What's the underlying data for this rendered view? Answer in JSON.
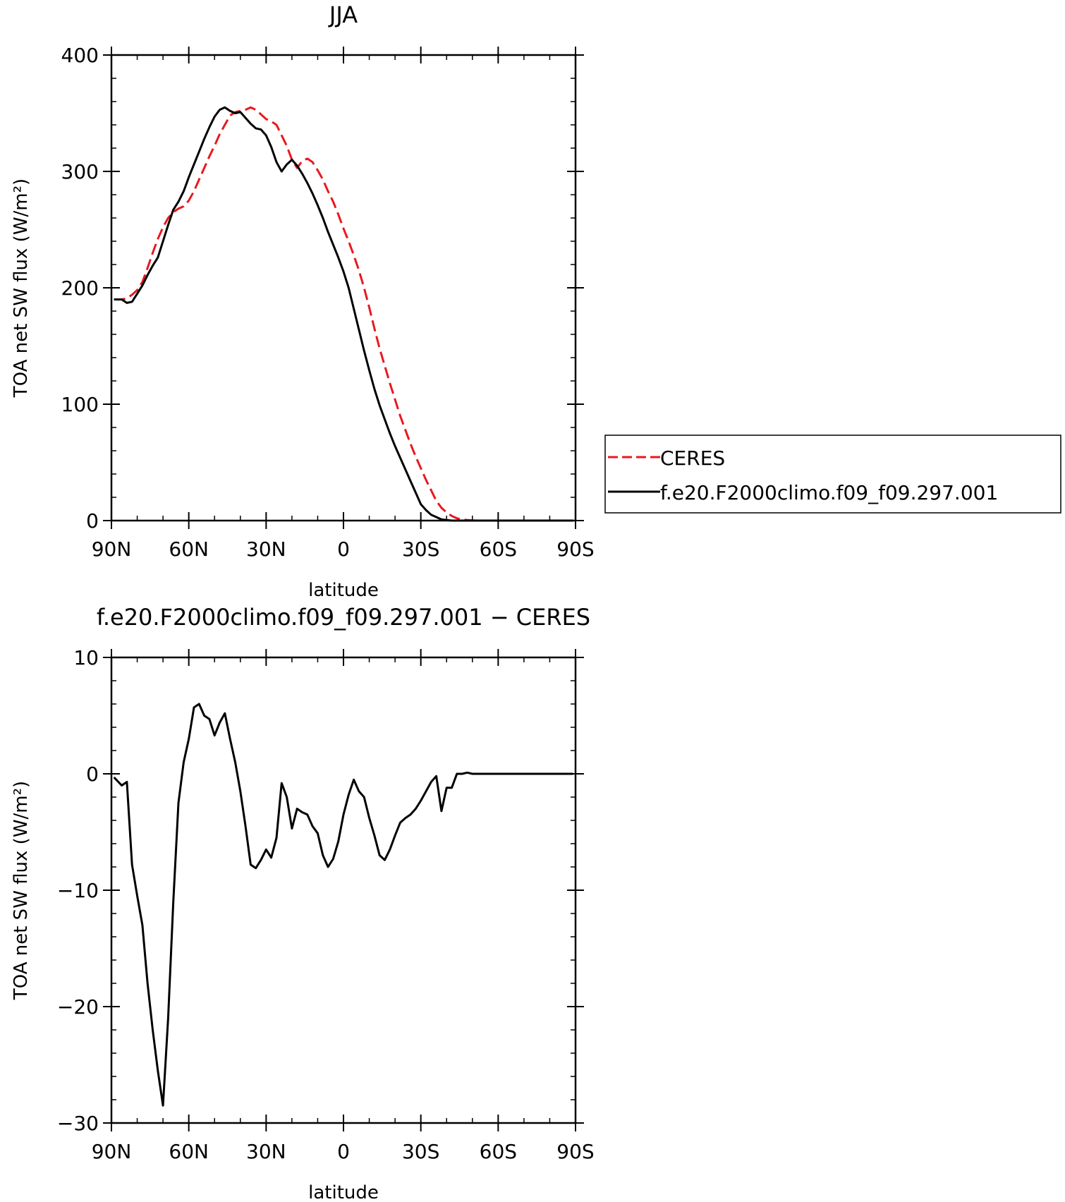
{
  "chart_data": [
    {
      "type": "line",
      "title": "JJA",
      "xlabel": "latitude",
      "ylabel": "TOA net SW flux (W/m²)",
      "xlim": [
        90,
        -90
      ],
      "ylim": [
        0,
        400
      ],
      "xticks": [
        90,
        60,
        30,
        0,
        -30,
        -60,
        -90
      ],
      "xtick_labels": [
        "90N",
        "60N",
        "30N",
        "0",
        "30S",
        "60S",
        "90S"
      ],
      "yticks": [
        0,
        100,
        200,
        300,
        400
      ],
      "ytick_labels": [
        "0",
        "100",
        "200",
        "300",
        "400"
      ],
      "legend": "right",
      "series": [
        {
          "name": "CERES",
          "color": "#e8191e",
          "dash": true,
          "x": [
            89,
            86,
            84,
            82,
            80,
            78,
            76,
            74,
            72,
            70,
            68,
            66,
            64,
            62,
            60,
            58,
            56,
            54,
            52,
            50,
            48,
            46,
            44,
            42,
            40,
            38,
            36,
            34,
            32,
            30,
            28,
            26,
            24,
            22,
            20,
            18,
            16,
            14,
            12,
            10,
            8,
            6,
            4,
            2,
            0,
            -2,
            -4,
            -6,
            -8,
            -10,
            -12,
            -14,
            -16,
            -18,
            -20,
            -22,
            -24,
            -26,
            -28,
            -30,
            -32,
            -34,
            -36,
            -38,
            -40,
            -42,
            -44,
            -46,
            -48,
            -50,
            -52,
            -54,
            -56,
            -58,
            -60,
            -62,
            -64,
            -66,
            -68,
            -70,
            -72,
            -74,
            -76,
            -78,
            -80,
            -82,
            -84,
            -86,
            -88,
            -89
          ],
          "y": [
            190,
            190,
            191,
            194,
            198,
            205,
            217,
            230,
            242,
            252,
            260,
            265,
            268,
            270,
            275,
            283,
            293,
            303,
            313,
            322,
            332,
            340,
            348,
            351,
            352,
            353,
            355,
            353,
            349,
            345,
            343,
            340,
            331,
            322,
            310,
            303,
            309,
            311,
            308,
            301,
            293,
            283,
            274,
            263,
            251,
            240,
            228,
            215,
            200,
            183,
            165,
            148,
            133,
            118,
            104,
            90,
            78,
            66,
            55,
            45,
            35,
            26,
            17,
            11,
            7,
            4,
            2,
            1,
            0.5,
            0.2,
            0,
            0,
            0,
            0,
            0,
            0,
            0,
            0,
            0,
            0,
            0,
            0,
            0,
            0,
            0,
            0,
            0,
            0,
            0,
            0
          ]
        },
        {
          "name": "f.e20.F2000climo.f09_f09.297.001",
          "color": "#000000",
          "dash": false,
          "x": [
            89,
            86,
            84,
            82,
            80,
            78,
            76,
            74,
            72,
            70,
            68,
            66,
            64,
            62,
            60,
            58,
            56,
            54,
            52,
            50,
            48,
            46,
            44,
            42,
            40,
            38,
            36,
            34,
            32,
            30,
            28,
            26,
            24,
            22,
            20,
            18,
            16,
            14,
            12,
            10,
            8,
            6,
            4,
            2,
            0,
            -2,
            -4,
            -6,
            -8,
            -10,
            -12,
            -14,
            -16,
            -18,
            -20,
            -22,
            -24,
            -26,
            -28,
            -30,
            -32,
            -34,
            -36,
            -38,
            -40,
            -42,
            -44,
            -46,
            -48,
            -50,
            -52,
            -54,
            -56,
            -58,
            -60,
            -62,
            -64,
            -66,
            -68,
            -70,
            -72,
            -74,
            -76,
            -78,
            -80,
            -82,
            -84,
            -86,
            -88,
            -89
          ],
          "y": [
            190,
            190,
            187,
            188,
            195,
            202,
            211,
            219,
            226,
            240,
            254,
            267,
            274,
            283,
            295,
            306,
            317,
            328,
            338,
            347,
            353,
            355,
            352,
            350,
            351,
            346,
            341,
            337,
            336,
            331,
            321,
            308,
            300,
            306,
            310,
            305,
            298,
            290,
            281,
            271,
            260,
            248,
            237,
            226,
            214,
            200,
            182,
            164,
            146,
            129,
            113,
            99,
            87,
            75,
            64,
            54,
            44,
            34,
            24,
            14,
            9,
            5,
            3,
            1,
            0.5,
            0,
            0,
            0,
            0,
            0,
            0,
            0,
            0,
            0,
            0,
            0,
            0,
            0,
            0,
            0,
            0,
            0,
            0,
            0,
            0,
            0,
            0,
            0,
            0,
            0
          ]
        }
      ]
    },
    {
      "type": "line",
      "title": "f.e20.F2000climo.f09_f09.297.001 − CERES",
      "xlabel": "latitude",
      "ylabel": "TOA net SW flux (W/m²)",
      "xlim": [
        90,
        -90
      ],
      "ylim": [
        -30,
        10
      ],
      "xticks": [
        90,
        60,
        30,
        0,
        -30,
        -60,
        -90
      ],
      "xtick_labels": [
        "90N",
        "60N",
        "30N",
        "0",
        "30S",
        "60S",
        "90S"
      ],
      "yticks": [
        10,
        0,
        -10,
        -20,
        -30
      ],
      "ytick_labels": [
        "10",
        "0",
        "−10",
        "−20",
        "−30"
      ],
      "series": [
        {
          "color": "#000000",
          "dash": false,
          "x": [
            89,
            86,
            84,
            82,
            80,
            78,
            76,
            74,
            72,
            70,
            68,
            66,
            64,
            62,
            60,
            58,
            56,
            54,
            52,
            50,
            48,
            46,
            44,
            42,
            40,
            38,
            36,
            34,
            32,
            30,
            28,
            26,
            24,
            22,
            20,
            18,
            16,
            14,
            12,
            10,
            8,
            6,
            4,
            2,
            0,
            -2,
            -4,
            -6,
            -8,
            -10,
            -12,
            -14,
            -16,
            -18,
            -20,
            -22,
            -24,
            -26,
            -28,
            -30,
            -32,
            -34,
            -36,
            -38,
            -40,
            -42,
            -44,
            -46,
            -48,
            -50,
            -52,
            -54,
            -56,
            -58,
            -60,
            -62,
            -64,
            -66,
            -68,
            -70,
            -72,
            -74,
            -76,
            -78,
            -80,
            -82,
            -84,
            -86,
            -88,
            -89
          ],
          "y": [
            -0.3,
            -1.0,
            -0.7,
            -7.8,
            -10.5,
            -13.0,
            -18.0,
            -22.0,
            -25.5,
            -28.5,
            -21.0,
            -11.0,
            -2.5,
            1.0,
            3.0,
            5.7,
            6.0,
            5.0,
            4.7,
            3.3,
            4.4,
            5.2,
            3.0,
            1.0,
            -1.5,
            -4.5,
            -7.8,
            -8.1,
            -7.4,
            -6.5,
            -7.2,
            -5.5,
            -0.8,
            -2.0,
            -4.7,
            -3.0,
            -3.3,
            -3.5,
            -4.5,
            -5.1,
            -7.0,
            -8.0,
            -7.3,
            -5.8,
            -3.5,
            -1.8,
            -0.5,
            -1.5,
            -2.0,
            -3.8,
            -5.3,
            -7.0,
            -7.4,
            -6.5,
            -5.3,
            -4.2,
            -3.8,
            -3.5,
            -3.0,
            -2.3,
            -1.5,
            -0.7,
            -0.2,
            -3.2,
            -1.2,
            -1.2,
            0,
            0,
            0.1,
            0,
            0,
            0,
            0,
            0,
            0,
            0,
            0,
            0,
            0,
            0,
            0,
            0,
            0,
            0,
            0,
            0,
            0,
            0,
            0,
            0
          ]
        }
      ]
    }
  ],
  "legend": {
    "entries": [
      "CERES",
      "f.e20.F2000climo.f09_f09.297.001"
    ]
  }
}
